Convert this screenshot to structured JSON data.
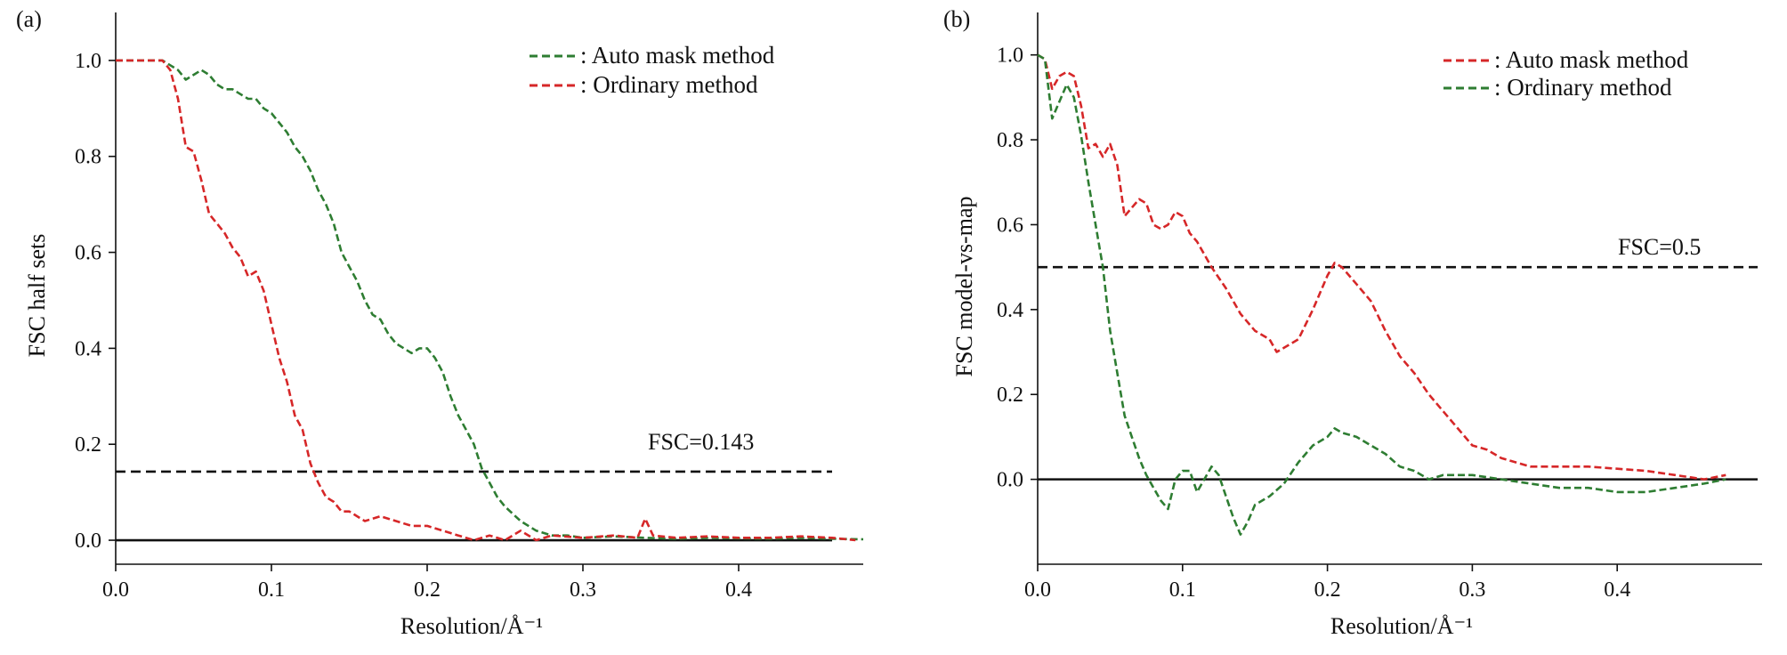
{
  "colors": {
    "green": "#2e7d32",
    "red": "#d62728",
    "black": "#111111"
  },
  "chart_data": [
    {
      "panel": "(a)",
      "type": "line",
      "xlabel": "Resolution/Å⁻¹",
      "ylabel": "FSC half sets",
      "xlim": [
        0,
        0.5
      ],
      "ylim": [
        -0.05,
        1.1
      ],
      "xticks": [
        "0.0",
        "0.1",
        "0.2",
        "0.3",
        "0.4"
      ],
      "yticks": [
        "0.0",
        "0.2",
        "0.4",
        "0.6",
        "0.8",
        "1.0"
      ],
      "legend_position": "top-right",
      "legend": [
        {
          "label": ": Auto mask method",
          "color": "green"
        },
        {
          "label": ": Ordinary method",
          "color": "red"
        }
      ],
      "threshold": {
        "y": 0.143,
        "label": "FSC=0.143"
      },
      "zero_line": 0,
      "series": [
        {
          "name": ": Auto mask method",
          "color": "green",
          "x": [
            0.0,
            0.01,
            0.02,
            0.03,
            0.035,
            0.04,
            0.045,
            0.05,
            0.055,
            0.06,
            0.065,
            0.07,
            0.075,
            0.08,
            0.085,
            0.09,
            0.095,
            0.1,
            0.105,
            0.11,
            0.115,
            0.12,
            0.125,
            0.13,
            0.135,
            0.14,
            0.145,
            0.15,
            0.155,
            0.16,
            0.165,
            0.17,
            0.175,
            0.18,
            0.185,
            0.19,
            0.195,
            0.2,
            0.205,
            0.21,
            0.215,
            0.22,
            0.225,
            0.23,
            0.235,
            0.24,
            0.245,
            0.25,
            0.26,
            0.27,
            0.28,
            0.29,
            0.3,
            0.32,
            0.34,
            0.36,
            0.38,
            0.4,
            0.42,
            0.44,
            0.46,
            0.48
          ],
          "y": [
            1.0,
            1.0,
            1.0,
            1.0,
            0.99,
            0.98,
            0.96,
            0.97,
            0.98,
            0.97,
            0.95,
            0.94,
            0.94,
            0.93,
            0.92,
            0.92,
            0.9,
            0.89,
            0.87,
            0.85,
            0.82,
            0.8,
            0.77,
            0.73,
            0.7,
            0.66,
            0.6,
            0.57,
            0.54,
            0.5,
            0.47,
            0.46,
            0.43,
            0.41,
            0.4,
            0.39,
            0.4,
            0.4,
            0.38,
            0.35,
            0.3,
            0.26,
            0.23,
            0.2,
            0.15,
            0.12,
            0.09,
            0.07,
            0.04,
            0.02,
            0.01,
            0.01,
            0.005,
            0.008,
            0.005,
            0.003,
            0.005,
            0.004,
            0.003,
            0.005,
            0.003,
            0.002
          ]
        },
        {
          "name": ": Ordinary method",
          "color": "red",
          "x": [
            0.0,
            0.01,
            0.02,
            0.03,
            0.035,
            0.04,
            0.045,
            0.05,
            0.055,
            0.06,
            0.065,
            0.07,
            0.075,
            0.08,
            0.085,
            0.09,
            0.095,
            0.1,
            0.105,
            0.11,
            0.115,
            0.12,
            0.125,
            0.13,
            0.135,
            0.14,
            0.145,
            0.15,
            0.16,
            0.17,
            0.18,
            0.19,
            0.2,
            0.21,
            0.22,
            0.23,
            0.24,
            0.25,
            0.26,
            0.27,
            0.28,
            0.3,
            0.32,
            0.335,
            0.34,
            0.345,
            0.36,
            0.38,
            0.4,
            0.42,
            0.44,
            0.46,
            0.475
          ],
          "y": [
            1.0,
            1.0,
            1.0,
            1.0,
            0.98,
            0.92,
            0.82,
            0.81,
            0.75,
            0.68,
            0.66,
            0.64,
            0.61,
            0.59,
            0.55,
            0.56,
            0.52,
            0.45,
            0.38,
            0.33,
            0.26,
            0.23,
            0.16,
            0.12,
            0.09,
            0.08,
            0.06,
            0.06,
            0.04,
            0.05,
            0.04,
            0.03,
            0.03,
            0.02,
            0.01,
            0.0,
            0.01,
            0.0,
            0.02,
            0.0,
            0.01,
            0.005,
            0.01,
            0.005,
            0.045,
            0.01,
            0.005,
            0.008,
            0.005,
            0.005,
            0.008,
            0.005,
            0.0
          ]
        }
      ]
    },
    {
      "panel": "(b)",
      "type": "line",
      "xlabel": "Resolution/Å⁻¹",
      "ylabel": "FSC model-vs-map",
      "xlim": [
        0,
        0.5
      ],
      "ylim": [
        -0.2,
        1.1
      ],
      "xticks": [
        "0.0",
        "0.1",
        "0.2",
        "0.3",
        "0.4"
      ],
      "yticks": [
        "0.0",
        "0.2",
        "0.4",
        "0.6",
        "0.8",
        "1.0"
      ],
      "legend_position": "top-right",
      "legend": [
        {
          "label": ": Auto mask method",
          "color": "red"
        },
        {
          "label": ": Ordinary method",
          "color": "green"
        }
      ],
      "threshold": {
        "y": 0.5,
        "label": "FSC=0.5"
      },
      "zero_line": 0,
      "series": [
        {
          "name": ": Auto mask method",
          "color": "red",
          "x": [
            0.0,
            0.005,
            0.01,
            0.015,
            0.02,
            0.025,
            0.03,
            0.035,
            0.04,
            0.045,
            0.05,
            0.055,
            0.06,
            0.065,
            0.07,
            0.075,
            0.08,
            0.085,
            0.09,
            0.095,
            0.1,
            0.105,
            0.11,
            0.12,
            0.13,
            0.14,
            0.15,
            0.16,
            0.165,
            0.17,
            0.18,
            0.19,
            0.2,
            0.205,
            0.21,
            0.22,
            0.23,
            0.24,
            0.25,
            0.26,
            0.27,
            0.28,
            0.29,
            0.3,
            0.31,
            0.32,
            0.34,
            0.36,
            0.38,
            0.4,
            0.42,
            0.44,
            0.46,
            0.475
          ],
          "y": [
            1.0,
            0.99,
            0.92,
            0.95,
            0.96,
            0.95,
            0.88,
            0.78,
            0.79,
            0.76,
            0.79,
            0.74,
            0.62,
            0.64,
            0.66,
            0.65,
            0.6,
            0.59,
            0.6,
            0.63,
            0.62,
            0.58,
            0.56,
            0.5,
            0.45,
            0.39,
            0.35,
            0.33,
            0.3,
            0.31,
            0.33,
            0.4,
            0.48,
            0.51,
            0.5,
            0.46,
            0.42,
            0.35,
            0.29,
            0.25,
            0.2,
            0.16,
            0.12,
            0.08,
            0.07,
            0.05,
            0.03,
            0.03,
            0.03,
            0.025,
            0.02,
            0.01,
            0.0,
            0.01
          ]
        },
        {
          "name": ": Ordinary method",
          "color": "green",
          "x": [
            0.0,
            0.005,
            0.01,
            0.015,
            0.02,
            0.025,
            0.03,
            0.035,
            0.04,
            0.045,
            0.05,
            0.055,
            0.06,
            0.065,
            0.07,
            0.075,
            0.08,
            0.085,
            0.09,
            0.095,
            0.1,
            0.105,
            0.11,
            0.115,
            0.12,
            0.125,
            0.13,
            0.135,
            0.14,
            0.145,
            0.15,
            0.16,
            0.17,
            0.18,
            0.19,
            0.2,
            0.205,
            0.21,
            0.22,
            0.23,
            0.24,
            0.25,
            0.26,
            0.27,
            0.28,
            0.3,
            0.32,
            0.34,
            0.36,
            0.38,
            0.4,
            0.42,
            0.44,
            0.46,
            0.475
          ],
          "y": [
            1.0,
            0.99,
            0.85,
            0.89,
            0.93,
            0.9,
            0.81,
            0.7,
            0.6,
            0.5,
            0.35,
            0.25,
            0.15,
            0.1,
            0.05,
            0.01,
            -0.02,
            -0.05,
            -0.07,
            0.0,
            0.02,
            0.02,
            -0.03,
            0.0,
            0.03,
            0.01,
            -0.04,
            -0.09,
            -0.13,
            -0.1,
            -0.06,
            -0.04,
            -0.01,
            0.04,
            0.08,
            0.1,
            0.12,
            0.11,
            0.1,
            0.08,
            0.06,
            0.03,
            0.02,
            0.0,
            0.01,
            0.01,
            0.0,
            -0.01,
            -0.02,
            -0.02,
            -0.03,
            -0.03,
            -0.02,
            -0.01,
            0.0
          ]
        }
      ]
    }
  ]
}
